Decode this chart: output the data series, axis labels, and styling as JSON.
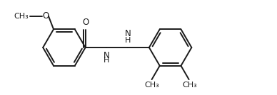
{
  "background": "#ffffff",
  "line_color": "#1a1a1a",
  "line_width": 1.4,
  "font_size": 8.5,
  "fig_width": 3.88,
  "fig_height": 1.34,
  "dpi": 100,
  "xlim": [
    -5.5,
    7.5
  ],
  "ylim": [
    -2.2,
    2.2
  ]
}
